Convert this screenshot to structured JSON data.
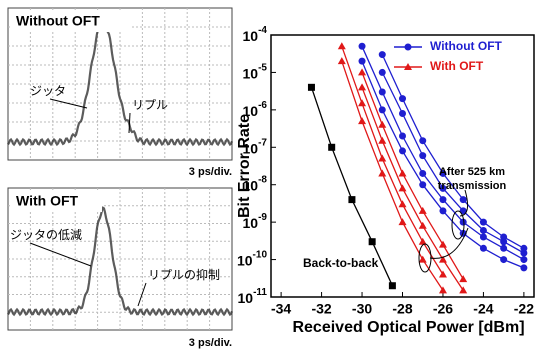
{
  "panels": [
    {
      "title": "Without OFT",
      "labels": [
        "ジッタ",
        "リプル"
      ],
      "scale": "3 ps/div."
    },
    {
      "title": "With OFT",
      "labels": [
        "ジッタの低減",
        "リプルの抑制"
      ],
      "scale": "3 ps/div."
    }
  ],
  "chart_data": {
    "type": "line",
    "xlabel": "Received Optical Power [dBm]",
    "ylabel": "Bit Error Rate",
    "xlim": [
      -34.5,
      -21.5
    ],
    "xticks": [
      -34,
      -32,
      -30,
      -28,
      -26,
      -24,
      -22
    ],
    "ylim": [
      1e-11,
      0.0001
    ],
    "log_y": true,
    "yticks": [
      {
        "value": 0.0001,
        "label": "10",
        "exponent": "-4"
      },
      {
        "value": 1e-05,
        "label": "10",
        "exponent": "-5"
      },
      {
        "value": 1e-06,
        "label": "10",
        "exponent": "-6"
      },
      {
        "value": 1e-07,
        "label": "10",
        "exponent": "-7"
      },
      {
        "value": 1e-08,
        "label": "10",
        "exponent": "-8"
      },
      {
        "value": 1e-09,
        "label": "10",
        "exponent": "-9"
      },
      {
        "value": 1e-10,
        "label": "10",
        "exponent": "-10"
      },
      {
        "value": 1e-11,
        "label": "10",
        "exponent": "-11"
      }
    ],
    "x": [
      -31,
      -30,
      -29,
      -28,
      -27,
      -26,
      -25,
      -24,
      -23,
      -22
    ],
    "legend": "upper right",
    "series": [
      {
        "name": "Without OFT",
        "color": "#1f1fd0",
        "marker": "circle",
        "in_legend": true,
        "values": [
          null,
          2e-05,
          1e-06,
          8e-08,
          1e-08,
          2e-09,
          5e-10,
          2e-10,
          1e-10,
          6e-11
        ]
      },
      {
        "color": "#1f1fd0",
        "marker": "circle",
        "values": [
          null,
          5e-05,
          3e-06,
          2e-07,
          2e-08,
          4e-09,
          1e-09,
          4e-10,
          2e-10,
          1e-10
        ]
      },
      {
        "color": "#1f1fd0",
        "marker": "circle",
        "values": [
          null,
          null,
          1e-05,
          8e-07,
          6e-08,
          8e-09,
          2e-09,
          6e-10,
          3e-10,
          1.5e-10
        ]
      },
      {
        "color": "#1f1fd0",
        "marker": "circle",
        "values": [
          null,
          null,
          3e-05,
          2e-06,
          1.5e-07,
          2e-08,
          4e-09,
          1e-09,
          4e-10,
          2e-10
        ]
      },
      {
        "name": "With OFT",
        "color": "#e01818",
        "marker": "triangle",
        "in_legend": true,
        "values": [
          2e-05,
          5e-07,
          2e-08,
          1e-09,
          1e-10,
          1.5e-11,
          null,
          null,
          null,
          null
        ]
      },
      {
        "color": "#e01818",
        "marker": "triangle",
        "values": [
          5e-05,
          1.5e-06,
          5e-08,
          3e-09,
          3e-10,
          4e-11,
          null,
          null,
          null,
          null
        ]
      },
      {
        "color": "#e01818",
        "marker": "triangle",
        "values": [
          null,
          4e-06,
          1.5e-07,
          8e-09,
          8e-10,
          1e-10,
          1.5e-11,
          null,
          null,
          null
        ]
      },
      {
        "color": "#e01818",
        "marker": "triangle",
        "values": [
          null,
          1e-05,
          4e-07,
          2e-08,
          2e-09,
          2.5e-10,
          3e-11,
          null,
          null,
          null
        ]
      },
      {
        "name": "Back-to-back",
        "color": "#000000",
        "marker": "square",
        "x": [
          -32.5,
          -31.5,
          -30.5,
          -29.5,
          -28.5
        ],
        "values": [
          4e-06,
          1e-07,
          4e-09,
          3e-10,
          2e-11
        ]
      }
    ],
    "annotations": [
      "After 525 km",
      "transmission"
    ]
  }
}
